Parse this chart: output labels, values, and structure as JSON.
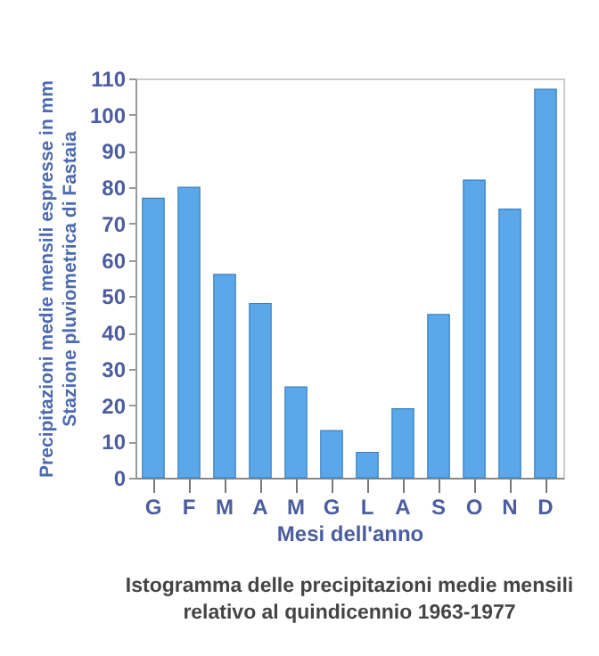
{
  "chart_data": {
    "type": "bar",
    "title": "Istogramma delle precipitazioni medie mensili\nrelativo al quindicennio 1963-1977",
    "xlabel": "Mesi dell'anno",
    "ylabel": "Precipitazioni medie mensili espresse in mm\nStazione pluviometrica di Fastaia",
    "categories": [
      "G",
      "F",
      "M",
      "A",
      "M",
      "G",
      "L",
      "A",
      "S",
      "O",
      "N",
      "D"
    ],
    "values": [
      77,
      80,
      56,
      48,
      25,
      13,
      7,
      19,
      45,
      82,
      74,
      107
    ],
    "color": "#5aa8ea",
    "ylim": [
      0,
      110
    ],
    "yticks": [
      0,
      10,
      20,
      30,
      40,
      50,
      60,
      70,
      80,
      90,
      100,
      110
    ],
    "grid": false
  }
}
